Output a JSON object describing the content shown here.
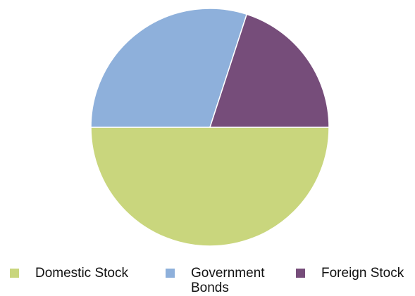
{
  "chart_data": {
    "type": "pie",
    "title": "",
    "categories": [
      "Domestic Stock",
      "Government Bonds",
      "Foreign Stock"
    ],
    "values": [
      50,
      30,
      20
    ],
    "colors": [
      "#c9d67d",
      "#8eb0db",
      "#764d7a"
    ],
    "start_angle_deg": 0,
    "direction": "clockwise",
    "legend_position": "bottom",
    "legend": [
      {
        "label": "Domestic Stock",
        "color": "#c9d67d"
      },
      {
        "label": "Government Bonds",
        "color": "#8eb0db"
      },
      {
        "label": "Foreign Stock",
        "color": "#764d7a"
      }
    ]
  }
}
